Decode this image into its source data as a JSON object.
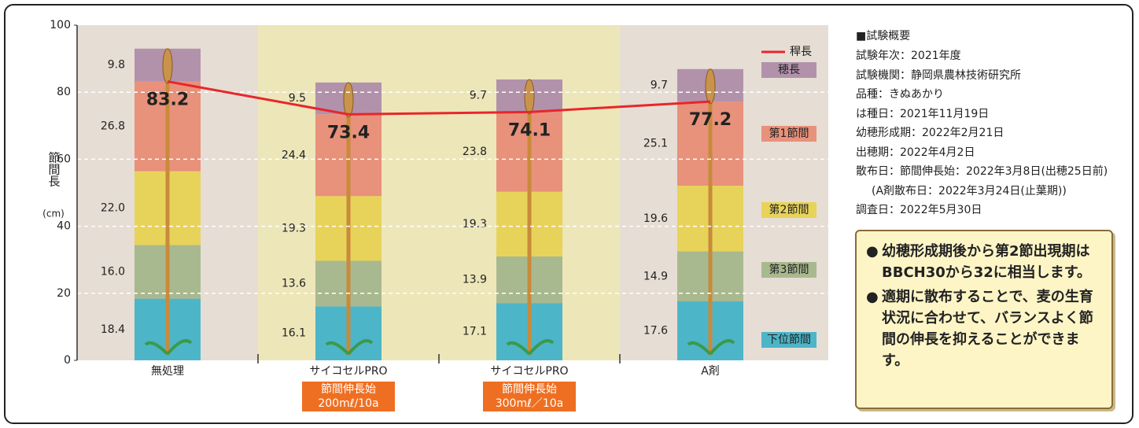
{
  "chart_data": {
    "type": "bar",
    "stacked": true,
    "y_label": "節間長",
    "y_unit": "(cm)",
    "categories": [
      "無処理",
      "サイコセルPRO",
      "サイコセルPRO",
      "A剤"
    ],
    "category_notes": [
      null,
      [
        "節間伸長始",
        "200mℓ/10a"
      ],
      [
        "節間伸長始",
        "300mℓ／10a"
      ],
      null
    ],
    "ylim": [
      0,
      100
    ],
    "yticks": [
      0,
      20,
      40,
      60,
      80,
      100
    ],
    "grid": true,
    "series": [
      {
        "name": "下位節間",
        "color": "#4db5c8",
        "values": [
          18.4,
          16.1,
          17.1,
          17.6
        ],
        "value_labels": [
          "18.4",
          "16.1",
          "17.1",
          "17.6"
        ]
      },
      {
        "name": "第3節間",
        "color": "#a9b98f",
        "values": [
          16.0,
          13.6,
          13.9,
          14.9
        ],
        "value_labels": [
          "16.0",
          "13.6",
          "13.9",
          "14.9"
        ]
      },
      {
        "name": "第2節間",
        "color": "#e8d35a",
        "values": [
          22.0,
          19.3,
          19.3,
          19.6
        ],
        "value_labels": [
          "22.0",
          "19.3",
          "19.3",
          "19.6"
        ]
      },
      {
        "name": "第1節間",
        "color": "#e8917b",
        "values": [
          26.8,
          24.4,
          23.8,
          25.1
        ],
        "value_labels": [
          "26.8",
          "24.4",
          "23.8",
          "25.1"
        ]
      },
      {
        "name": "穂長",
        "color": "#b292ab",
        "values": [
          9.8,
          9.5,
          9.7,
          9.7
        ],
        "value_labels": [
          "9.8",
          "9.5",
          "9.7",
          "9.7"
        ]
      }
    ],
    "line_series": {
      "name": "稈長",
      "color": "#e8262a",
      "values": [
        83.2,
        73.4,
        74.1,
        77.2
      ]
    }
  },
  "summary": {
    "title": "■試験概要",
    "items": [
      "試験年次：2021年度",
      "試験機関：静岡県農林技術研究所",
      "品種：きぬあかり",
      "は種日：2021年11月19日",
      "幼穂形成期：2022年2月21日",
      "出穂期：2022年4月2日",
      "散布日：節間伸長始：2022年3月8日(出穂25日前)",
      "(A剤散布日：2022年3月24日(止葉期))",
      "調査日：2022年5月30日"
    ]
  },
  "notes": [
    "幼穂形成期後から第2節出現期はBBCH30から32に相当します。",
    "適期に散布することで、麦の生育状況に合わせて、バランスよく節間の伸長を抑えることができます。"
  ]
}
